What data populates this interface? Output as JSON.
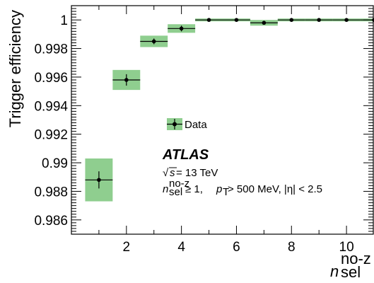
{
  "chart_data": {
    "type": "scatter",
    "xlabel_main": "n",
    "xlabel_sup": "no-z",
    "xlabel_sub": "sel",
    "ylabel": "Trigger efficiency",
    "xlim": [
      0,
      11
    ],
    "ylim": [
      0.985,
      1.001
    ],
    "x_ticks": [
      2,
      4,
      6,
      8,
      10
    ],
    "y_ticks": [
      0.986,
      0.988,
      0.99,
      0.992,
      0.994,
      0.996,
      0.998,
      1
    ],
    "y_tick_labels": [
      "0.986",
      "0.988",
      "0.99",
      "0.992",
      "0.994",
      "0.996",
      "0.998",
      "1"
    ],
    "x_tick_labels": [
      "2",
      "4",
      "6",
      "8",
      "10"
    ],
    "series": [
      {
        "name": "Data",
        "points": [
          {
            "x": 1,
            "y": 0.9888,
            "stat_err": 0.0006,
            "syst_err": 0.0015,
            "xerr": 0.5
          },
          {
            "x": 2,
            "y": 0.9958,
            "stat_err": 0.0004,
            "syst_err": 0.0007,
            "xerr": 0.5
          },
          {
            "x": 3,
            "y": 0.9985,
            "stat_err": 0.0002,
            "syst_err": 0.0004,
            "xerr": 0.5
          },
          {
            "x": 4,
            "y": 0.9994,
            "stat_err": 0.0002,
            "syst_err": 0.0003,
            "xerr": 0.5
          },
          {
            "x": 5,
            "y": 1.0,
            "stat_err": 0.0,
            "syst_err": 0.0001,
            "xerr": 0.5
          },
          {
            "x": 6,
            "y": 1.0,
            "stat_err": 0.0,
            "syst_err": 0.0001,
            "xerr": 0.5
          },
          {
            "x": 7,
            "y": 0.9998,
            "stat_err": 0.0001,
            "syst_err": 0.0002,
            "xerr": 0.5
          },
          {
            "x": 8,
            "y": 1.0,
            "stat_err": 0.0,
            "syst_err": 0.0001,
            "xerr": 0.5
          },
          {
            "x": 9,
            "y": 1.0,
            "stat_err": 0.0,
            "syst_err": 0.0001,
            "xerr": 0.5
          },
          {
            "x": 10,
            "y": 1.0,
            "stat_err": 0.0,
            "syst_err": 0.0001,
            "xerr": 0.5
          },
          {
            "x": 11,
            "y": 1.0,
            "stat_err": 0.0,
            "syst_err": 0.0001,
            "xerr": 0.5
          }
        ]
      }
    ],
    "legend": {
      "label": "Data",
      "placement": "center"
    },
    "colors": {
      "band": "#8fce8f",
      "marker": "#000000"
    },
    "annotations": {
      "experiment": "ATLAS",
      "energy_sqrt": "s",
      "energy_rest": " = 13 TeV",
      "selection_n": "n",
      "selection_n_sup": "no-z",
      "selection_n_sub": "sel",
      "selection_geq": " ≥ 1, ",
      "selection_p": "p",
      "selection_p_sub": "T",
      "selection_p_rest": " > 500 MeV, |η| < 2.5"
    }
  }
}
